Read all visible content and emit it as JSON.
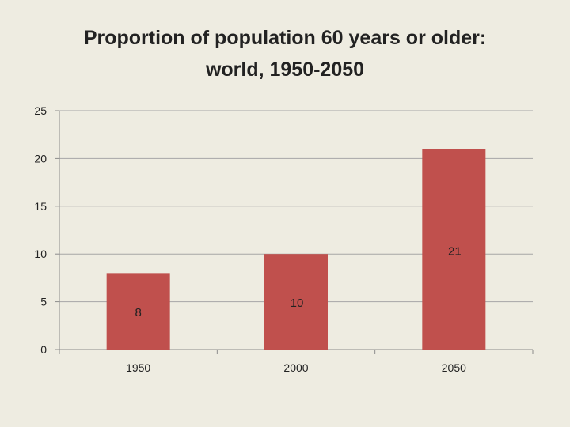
{
  "title_line1": "Proportion of population 60 years or older:",
  "title_line2": "world, 1950-2050",
  "chart_data": {
    "type": "bar",
    "title": "Proportion of population 60 years or older: world, 1950-2050",
    "categories": [
      "1950",
      "2000",
      "2050"
    ],
    "values": [
      8,
      10,
      21
    ],
    "data_labels": [
      "8",
      "10",
      "21"
    ],
    "xlabel": "",
    "ylabel": "",
    "ylim": [
      0,
      25
    ],
    "yticks": [
      0,
      5,
      10,
      15,
      20,
      25
    ],
    "grid": true,
    "legend": "none",
    "bar_color": "#c0504d",
    "grid_color": "#a6a6a6",
    "background": "#eeece1"
  }
}
